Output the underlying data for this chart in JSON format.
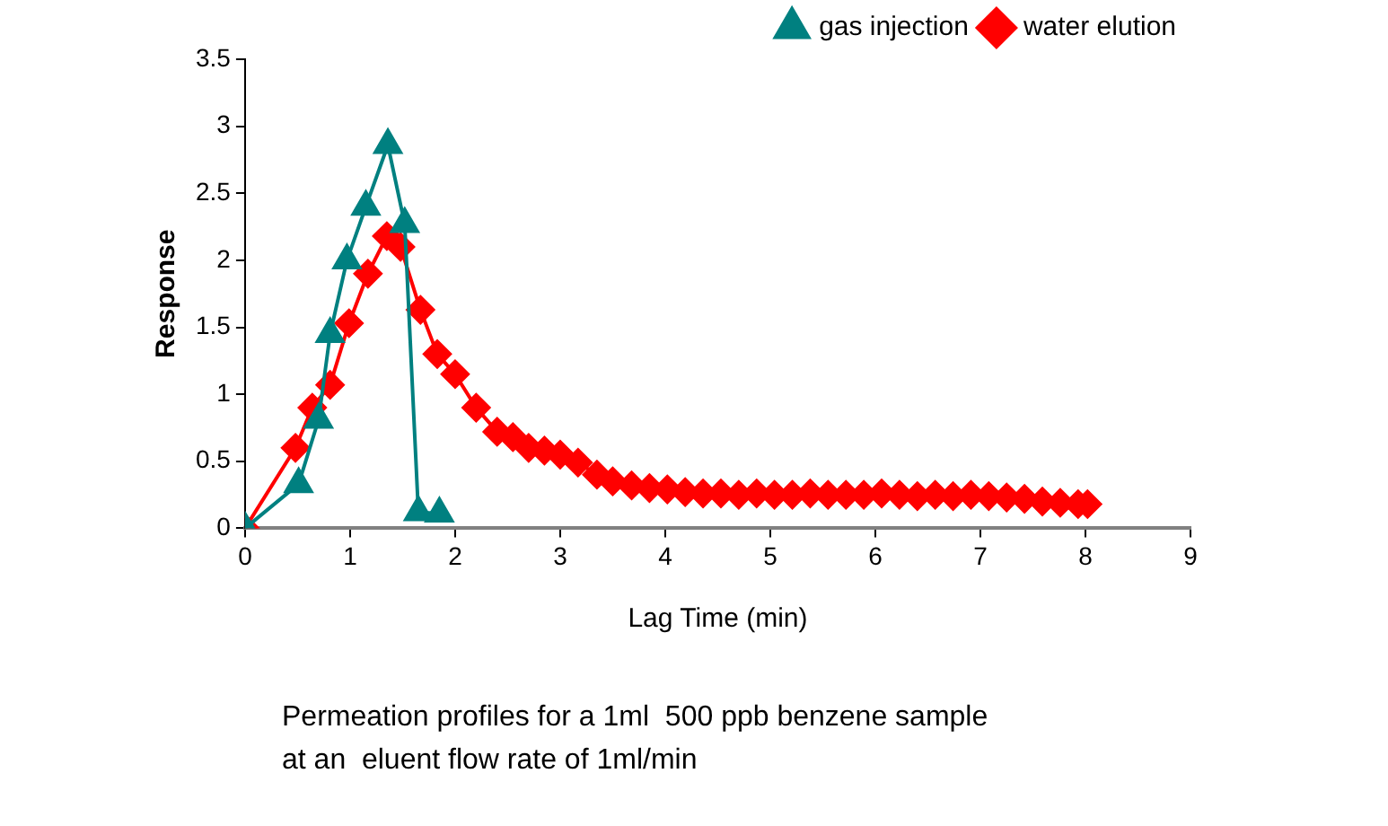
{
  "chart_data": {
    "type": "line",
    "xlabel": "Lag Time (min)",
    "ylabel": "Response",
    "annotations": [
      "Permeation profiles for a 1ml  500 ppb benzene sample\nat an  eluent flow rate of 1ml/min"
    ],
    "xlim": [
      0,
      9
    ],
    "xticks": [
      0,
      1,
      2,
      3,
      4,
      5,
      6,
      7,
      8,
      9
    ],
    "ylim": [
      0,
      3.5
    ],
    "yticks": [
      0,
      0.5,
      1,
      1.5,
      2,
      2.5,
      3,
      3.5
    ],
    "grid": false,
    "legend": "top right",
    "series": [
      {
        "name": "gas injection",
        "color": "#008080",
        "marker": "triangle",
        "x": [
          0,
          0.51,
          0.7,
          0.81,
          0.97,
          1.15,
          1.36,
          1.52,
          1.65,
          1.85
        ],
        "values": [
          0,
          0.33,
          0.81,
          1.45,
          2.0,
          2.4,
          2.86,
          2.27,
          0.12,
          0.11
        ]
      },
      {
        "name": "water elution",
        "color": "#ff0000",
        "marker": "diamond",
        "x": [
          0,
          0.48,
          0.64,
          0.81,
          0.99,
          1.17,
          1.35,
          1.48,
          1.67,
          1.83,
          2.0,
          2.2,
          2.4,
          2.55,
          2.7,
          2.85,
          3.0,
          3.17,
          3.35,
          3.5,
          3.68,
          3.85,
          4.02,
          4.19,
          4.36,
          4.53,
          4.7,
          4.87,
          5.04,
          5.21,
          5.38,
          5.55,
          5.72,
          5.89,
          6.06,
          6.23,
          6.4,
          6.57,
          6.74,
          6.91,
          7.08,
          7.25,
          7.42,
          7.59,
          7.76,
          7.93,
          8.02
        ],
        "values": [
          0,
          0.6,
          0.9,
          1.07,
          1.53,
          1.9,
          2.18,
          2.1,
          1.63,
          1.3,
          1.15,
          0.9,
          0.72,
          0.68,
          0.6,
          0.58,
          0.55,
          0.49,
          0.4,
          0.35,
          0.32,
          0.3,
          0.29,
          0.27,
          0.26,
          0.26,
          0.25,
          0.26,
          0.25,
          0.25,
          0.26,
          0.25,
          0.25,
          0.25,
          0.26,
          0.25,
          0.24,
          0.25,
          0.24,
          0.25,
          0.24,
          0.23,
          0.22,
          0.2,
          0.19,
          0.18,
          0.18
        ]
      }
    ]
  }
}
